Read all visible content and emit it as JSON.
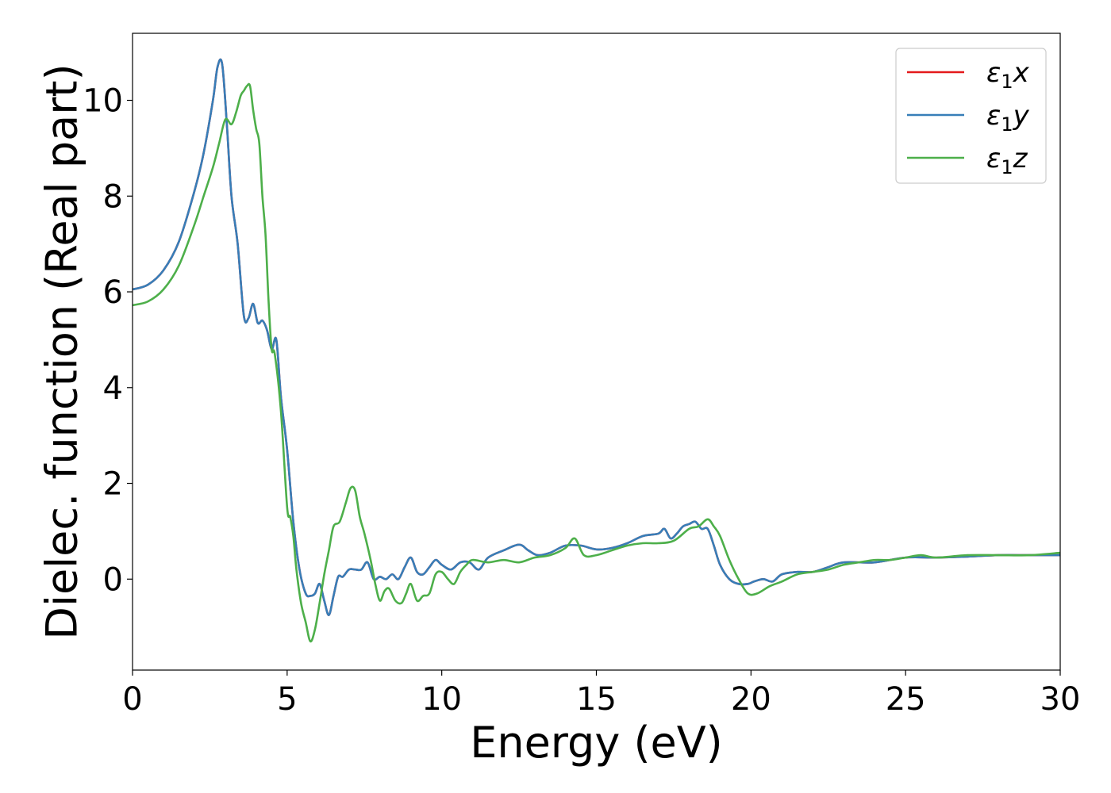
{
  "chart_data": {
    "type": "line",
    "title": "",
    "xlabel": "Energy (eV)",
    "ylabel": "Dielec. function (Real part)",
    "xlim": [
      0,
      30
    ],
    "ylim": [
      -1.9,
      11.4
    ],
    "xticks": [
      0,
      5,
      10,
      15,
      20,
      25,
      30
    ],
    "yticks": [
      0,
      2,
      4,
      6,
      8,
      10
    ],
    "grid": false,
    "legend_position": "top-right",
    "colors": {
      "x": "#e41a1c",
      "y": "#377eb8",
      "z": "#4daf4a"
    },
    "series": [
      {
        "key": "x",
        "base": "ε",
        "sub": "1",
        "comp": "x",
        "color": "#e41a1c",
        "x": [
          0,
          0.5,
          1,
          1.5,
          2,
          2.3,
          2.6,
          2.75,
          2.9,
          3.05,
          3.2,
          3.4,
          3.6,
          3.75,
          3.9,
          4.05,
          4.2,
          4.35,
          4.5,
          4.65,
          4.8,
          5,
          5.2,
          5.4,
          5.6,
          5.75,
          5.9,
          6.05,
          6.2,
          6.35,
          6.5,
          6.65,
          6.8,
          7.0,
          7.2,
          7.4,
          7.6,
          7.8,
          8.0,
          8.2,
          8.4,
          8.6,
          8.8,
          9.0,
          9.2,
          9.4,
          9.6,
          9.8,
          10,
          10.3,
          10.6,
          10.9,
          11.2,
          11.5,
          12,
          12.5,
          12.8,
          13.1,
          13.5,
          14,
          14.5,
          15,
          15.5,
          16,
          16.5,
          17,
          17.2,
          17.4,
          17.6,
          17.8,
          18,
          18.2,
          18.4,
          18.6,
          18.8,
          19,
          19.3,
          19.6,
          19.9,
          20.1,
          20.4,
          20.7,
          21,
          21.5,
          22,
          22.5,
          23,
          24,
          25,
          26,
          27,
          28,
          29,
          30
        ],
        "values": [
          6.05,
          6.15,
          6.45,
          7.05,
          8.1,
          8.9,
          10.0,
          10.7,
          10.75,
          9.5,
          8.0,
          7.0,
          5.5,
          5.45,
          5.75,
          5.35,
          5.4,
          5.2,
          4.8,
          5.0,
          3.8,
          2.7,
          1.2,
          0.2,
          -0.3,
          -0.35,
          -0.3,
          -0.1,
          -0.45,
          -0.75,
          -0.35,
          0.05,
          0.05,
          0.2,
          0.2,
          0.2,
          0.35,
          0.0,
          0.05,
          0.0,
          0.1,
          0.0,
          0.25,
          0.45,
          0.15,
          0.1,
          0.25,
          0.4,
          0.3,
          0.2,
          0.35,
          0.35,
          0.2,
          0.45,
          0.6,
          0.72,
          0.6,
          0.5,
          0.55,
          0.7,
          0.7,
          0.62,
          0.65,
          0.75,
          0.9,
          0.95,
          1.05,
          0.85,
          0.95,
          1.1,
          1.15,
          1.2,
          1.05,
          1.05,
          0.7,
          0.3,
          0.0,
          -0.1,
          -0.1,
          -0.05,
          0.0,
          -0.05,
          0.1,
          0.15,
          0.15,
          0.25,
          0.35,
          0.35,
          0.45,
          0.45,
          0.47,
          0.5,
          0.5,
          0.5
        ]
      },
      {
        "key": "y",
        "base": "ε",
        "sub": "1",
        "comp": "y",
        "color": "#377eb8",
        "x": [
          0,
          0.5,
          1,
          1.5,
          2,
          2.3,
          2.6,
          2.75,
          2.9,
          3.05,
          3.2,
          3.4,
          3.6,
          3.75,
          3.9,
          4.05,
          4.2,
          4.35,
          4.5,
          4.65,
          4.8,
          5,
          5.2,
          5.4,
          5.6,
          5.75,
          5.9,
          6.05,
          6.2,
          6.35,
          6.5,
          6.65,
          6.8,
          7.0,
          7.2,
          7.4,
          7.6,
          7.8,
          8.0,
          8.2,
          8.4,
          8.6,
          8.8,
          9.0,
          9.2,
          9.4,
          9.6,
          9.8,
          10,
          10.3,
          10.6,
          10.9,
          11.2,
          11.5,
          12,
          12.5,
          12.8,
          13.1,
          13.5,
          14,
          14.5,
          15,
          15.5,
          16,
          16.5,
          17,
          17.2,
          17.4,
          17.6,
          17.8,
          18,
          18.2,
          18.4,
          18.6,
          18.8,
          19,
          19.3,
          19.6,
          19.9,
          20.1,
          20.4,
          20.7,
          21,
          21.5,
          22,
          22.5,
          23,
          24,
          25,
          26,
          27,
          28,
          29,
          30
        ],
        "values": [
          6.05,
          6.15,
          6.45,
          7.05,
          8.1,
          8.9,
          10.0,
          10.7,
          10.75,
          9.5,
          8.0,
          7.0,
          5.5,
          5.45,
          5.75,
          5.35,
          5.4,
          5.2,
          4.8,
          5.0,
          3.8,
          2.7,
          1.2,
          0.2,
          -0.3,
          -0.35,
          -0.3,
          -0.1,
          -0.45,
          -0.75,
          -0.35,
          0.05,
          0.05,
          0.2,
          0.2,
          0.2,
          0.35,
          0.0,
          0.05,
          0.0,
          0.1,
          0.0,
          0.25,
          0.45,
          0.15,
          0.1,
          0.25,
          0.4,
          0.3,
          0.2,
          0.35,
          0.35,
          0.2,
          0.45,
          0.6,
          0.72,
          0.6,
          0.5,
          0.55,
          0.7,
          0.7,
          0.62,
          0.65,
          0.75,
          0.9,
          0.95,
          1.05,
          0.85,
          0.95,
          1.1,
          1.15,
          1.2,
          1.05,
          1.05,
          0.7,
          0.3,
          0.0,
          -0.1,
          -0.1,
          -0.05,
          0.0,
          -0.05,
          0.1,
          0.15,
          0.15,
          0.25,
          0.35,
          0.35,
          0.45,
          0.45,
          0.47,
          0.5,
          0.5,
          0.5
        ]
      },
      {
        "key": "z",
        "base": "ε",
        "sub": "1",
        "comp": "z",
        "color": "#4daf4a",
        "x": [
          0,
          0.5,
          1,
          1.5,
          2,
          2.3,
          2.6,
          2.8,
          3.0,
          3.2,
          3.35,
          3.5,
          3.6,
          3.7,
          3.8,
          3.9,
          4.0,
          4.1,
          4.2,
          4.3,
          4.4,
          4.5,
          4.6,
          4.8,
          5.0,
          5.1,
          5.2,
          5.3,
          5.45,
          5.6,
          5.75,
          5.9,
          6.05,
          6.2,
          6.35,
          6.5,
          6.7,
          6.9,
          7.05,
          7.2,
          7.35,
          7.5,
          7.7,
          7.85,
          8.0,
          8.15,
          8.3,
          8.5,
          8.7,
          8.85,
          9.0,
          9.2,
          9.4,
          9.6,
          9.8,
          10,
          10.2,
          10.4,
          10.6,
          10.8,
          11,
          11.5,
          12,
          12.5,
          13,
          13.5,
          14,
          14.3,
          14.6,
          15,
          15.5,
          16,
          16.5,
          17,
          17.5,
          18,
          18.3,
          18.6,
          18.8,
          19,
          19.3,
          19.6,
          19.9,
          20.2,
          20.6,
          21,
          21.5,
          22,
          22.5,
          23,
          23.5,
          24,
          24.5,
          25,
          25.5,
          26,
          27,
          28,
          29,
          30
        ],
        "values": [
          5.72,
          5.8,
          6.05,
          6.55,
          7.4,
          8.0,
          8.6,
          9.1,
          9.6,
          9.5,
          9.75,
          10.1,
          10.2,
          10.3,
          10.3,
          9.8,
          9.4,
          9.1,
          8.0,
          7.2,
          5.8,
          4.8,
          4.7,
          3.5,
          1.5,
          1.3,
          0.9,
          0.2,
          -0.5,
          -0.9,
          -1.3,
          -1.05,
          -0.5,
          0.1,
          0.6,
          1.1,
          1.2,
          1.6,
          1.9,
          1.85,
          1.3,
          0.95,
          0.4,
          -0.1,
          -0.45,
          -0.25,
          -0.2,
          -0.45,
          -0.5,
          -0.3,
          -0.1,
          -0.45,
          -0.35,
          -0.3,
          0.1,
          0.15,
          0.0,
          -0.1,
          0.15,
          0.3,
          0.4,
          0.35,
          0.4,
          0.35,
          0.45,
          0.5,
          0.65,
          0.85,
          0.5,
          0.5,
          0.6,
          0.7,
          0.75,
          0.75,
          0.8,
          1.05,
          1.1,
          1.25,
          1.1,
          0.9,
          0.4,
          0.0,
          -0.3,
          -0.3,
          -0.15,
          -0.05,
          0.1,
          0.15,
          0.2,
          0.3,
          0.35,
          0.4,
          0.4,
          0.45,
          0.5,
          0.45,
          0.5,
          0.5,
          0.5,
          0.55
        ]
      }
    ]
  }
}
